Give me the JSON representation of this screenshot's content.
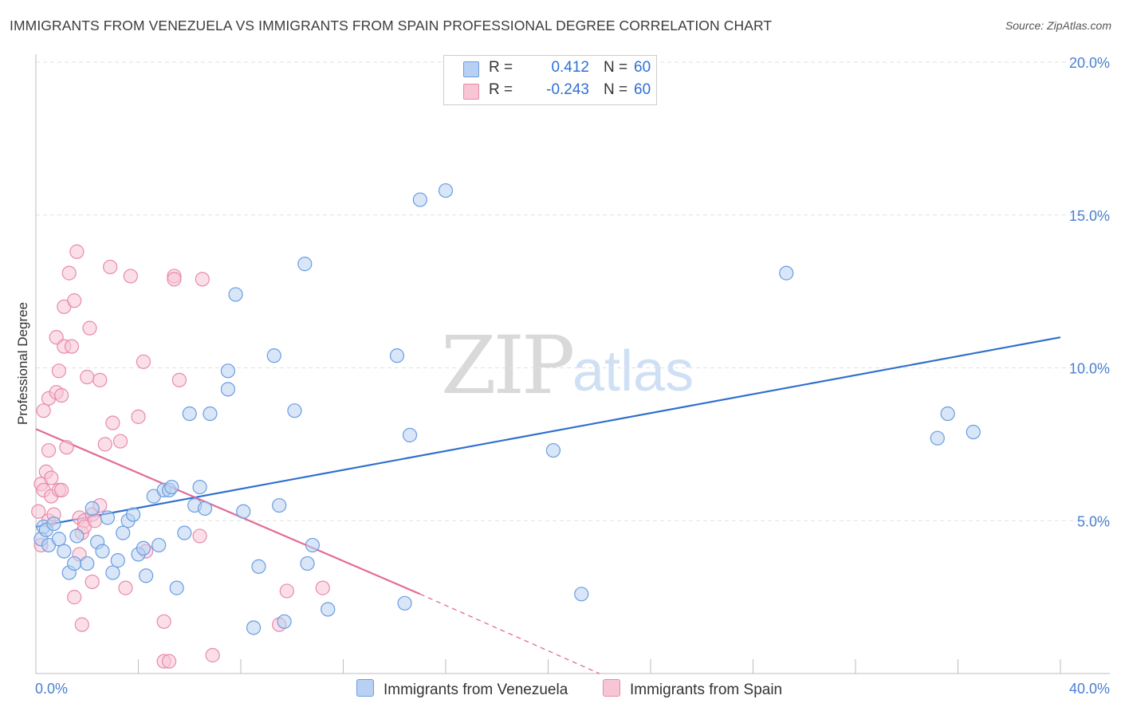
{
  "title": "IMMIGRANTS FROM VENEZUELA VS IMMIGRANTS FROM SPAIN PROFESSIONAL DEGREE CORRELATION CHART",
  "source": "Source: ZipAtlas.com",
  "watermark": {
    "zip": "ZIP",
    "atlas": "atlas"
  },
  "colors": {
    "venezuela_fill": "#b8d1f3",
    "venezuela_stroke": "#6a9de0",
    "venezuela_line": "#2f6fcc",
    "spain_fill": "#f8c5d5",
    "spain_stroke": "#e88aa8",
    "spain_line": "#e26b95",
    "tick_text": "#4a7fd0"
  },
  "legend": {
    "rows": [
      {
        "r_label": "R =",
        "r_value": "0.412",
        "n_label": "N =",
        "n_value": "60"
      },
      {
        "r_label": "R =",
        "r_value": "-0.243",
        "n_label": "N =",
        "n_value": "60"
      }
    ]
  },
  "bottom_legend": [
    "Immigrants from Venezuela",
    "Immigrants from Spain"
  ],
  "chart_data": {
    "type": "scatter",
    "title": "IMMIGRANTS FROM VENEZUELA VS IMMIGRANTS FROM SPAIN PROFESSIONAL DEGREE CORRELATION CHART",
    "xlabel": "",
    "ylabel": "Professional Degree",
    "xlim": [
      0,
      40
    ],
    "ylim": [
      0,
      20
    ],
    "x_tick_labels": [
      "0.0%",
      "40.0%"
    ],
    "y_ticks": [
      5,
      10,
      15,
      20
    ],
    "y_tick_labels": [
      "5.0%",
      "10.0%",
      "15.0%",
      "20.0%"
    ],
    "grid": true,
    "series": [
      {
        "name": "Immigrants from Venezuela",
        "r": 0.412,
        "n": 60,
        "trend": {
          "x0": 0,
          "y0": 4.8,
          "x1": 40,
          "y1": 11.0
        },
        "points": [
          [
            0.2,
            4.4
          ],
          [
            0.3,
            4.8
          ],
          [
            0.4,
            4.7
          ],
          [
            0.5,
            4.2
          ],
          [
            0.7,
            4.9
          ],
          [
            0.9,
            4.4
          ],
          [
            1.1,
            4.0
          ],
          [
            1.3,
            3.3
          ],
          [
            1.5,
            3.6
          ],
          [
            1.6,
            4.5
          ],
          [
            2.0,
            3.6
          ],
          [
            2.2,
            5.4
          ],
          [
            2.4,
            4.3
          ],
          [
            2.6,
            4.0
          ],
          [
            2.8,
            5.1
          ],
          [
            3.0,
            3.3
          ],
          [
            3.2,
            3.7
          ],
          [
            3.4,
            4.6
          ],
          [
            3.6,
            5.0
          ],
          [
            3.8,
            5.2
          ],
          [
            4.0,
            3.9
          ],
          [
            4.2,
            4.1
          ],
          [
            4.3,
            3.2
          ],
          [
            4.6,
            5.8
          ],
          [
            4.8,
            4.2
          ],
          [
            5.0,
            6.0
          ],
          [
            5.2,
            6.0
          ],
          [
            5.3,
            6.1
          ],
          [
            5.5,
            2.8
          ],
          [
            5.8,
            4.6
          ],
          [
            6.0,
            8.5
          ],
          [
            6.2,
            5.5
          ],
          [
            6.4,
            6.1
          ],
          [
            6.6,
            5.4
          ],
          [
            6.8,
            8.5
          ],
          [
            7.5,
            9.3
          ],
          [
            7.5,
            9.9
          ],
          [
            7.8,
            12.4
          ],
          [
            8.1,
            5.3
          ],
          [
            8.5,
            1.5
          ],
          [
            8.7,
            3.5
          ],
          [
            9.3,
            10.4
          ],
          [
            9.5,
            5.5
          ],
          [
            9.7,
            1.7
          ],
          [
            10.1,
            8.6
          ],
          [
            10.5,
            13.4
          ],
          [
            10.6,
            3.6
          ],
          [
            10.8,
            4.2
          ],
          [
            11.4,
            2.1
          ],
          [
            14.1,
            10.4
          ],
          [
            14.4,
            2.3
          ],
          [
            14.6,
            7.8
          ],
          [
            15.0,
            15.5
          ],
          [
            16.0,
            15.8
          ],
          [
            20.2,
            7.3
          ],
          [
            21.3,
            2.6
          ],
          [
            29.3,
            13.1
          ],
          [
            35.2,
            7.7
          ],
          [
            35.6,
            8.5
          ],
          [
            36.6,
            7.9
          ]
        ]
      },
      {
        "name": "Immigrants from Spain",
        "r": -0.243,
        "n": 60,
        "trend": {
          "x0": 0,
          "y0": 8.0,
          "x1": 15.0,
          "y1": 2.6
        },
        "trend_dashed": {
          "x0": 15.0,
          "y0": 2.6,
          "x1": 22.0,
          "y1": 0.0
        },
        "points": [
          [
            0.1,
            5.3
          ],
          [
            0.2,
            4.2
          ],
          [
            0.2,
            6.2
          ],
          [
            0.3,
            8.6
          ],
          [
            0.3,
            6.0
          ],
          [
            0.4,
            6.6
          ],
          [
            0.5,
            7.3
          ],
          [
            0.5,
            5.0
          ],
          [
            0.5,
            9.0
          ],
          [
            0.6,
            5.8
          ],
          [
            0.6,
            6.4
          ],
          [
            0.7,
            5.2
          ],
          [
            0.8,
            11.0
          ],
          [
            0.8,
            9.2
          ],
          [
            0.9,
            9.9
          ],
          [
            0.9,
            6.0
          ],
          [
            1.0,
            6.0
          ],
          [
            1.0,
            9.1
          ],
          [
            1.1,
            10.7
          ],
          [
            1.1,
            12.0
          ],
          [
            1.2,
            7.4
          ],
          [
            1.3,
            13.1
          ],
          [
            1.4,
            10.7
          ],
          [
            1.5,
            2.5
          ],
          [
            1.5,
            12.2
          ],
          [
            1.6,
            13.8
          ],
          [
            1.7,
            5.1
          ],
          [
            1.7,
            3.9
          ],
          [
            1.8,
            4.6
          ],
          [
            1.8,
            1.6
          ],
          [
            1.9,
            5.0
          ],
          [
            1.9,
            4.8
          ],
          [
            2.0,
            9.7
          ],
          [
            2.1,
            11.3
          ],
          [
            2.2,
            5.2
          ],
          [
            2.2,
            3.0
          ],
          [
            2.3,
            5.0
          ],
          [
            2.5,
            9.6
          ],
          [
            2.5,
            5.5
          ],
          [
            2.7,
            7.5
          ],
          [
            2.9,
            13.3
          ],
          [
            3.0,
            8.2
          ],
          [
            3.3,
            7.6
          ],
          [
            3.5,
            2.8
          ],
          [
            3.7,
            13.0
          ],
          [
            4.0,
            8.4
          ],
          [
            4.2,
            10.2
          ],
          [
            4.3,
            4.0
          ],
          [
            5.0,
            1.7
          ],
          [
            5.0,
            0.4
          ],
          [
            5.2,
            0.4
          ],
          [
            5.4,
            13.0
          ],
          [
            5.4,
            12.9
          ],
          [
            5.6,
            9.6
          ],
          [
            6.4,
            4.5
          ],
          [
            6.5,
            12.9
          ],
          [
            6.9,
            0.6
          ],
          [
            9.5,
            1.6
          ],
          [
            9.8,
            2.7
          ],
          [
            11.2,
            2.8
          ]
        ]
      }
    ]
  }
}
